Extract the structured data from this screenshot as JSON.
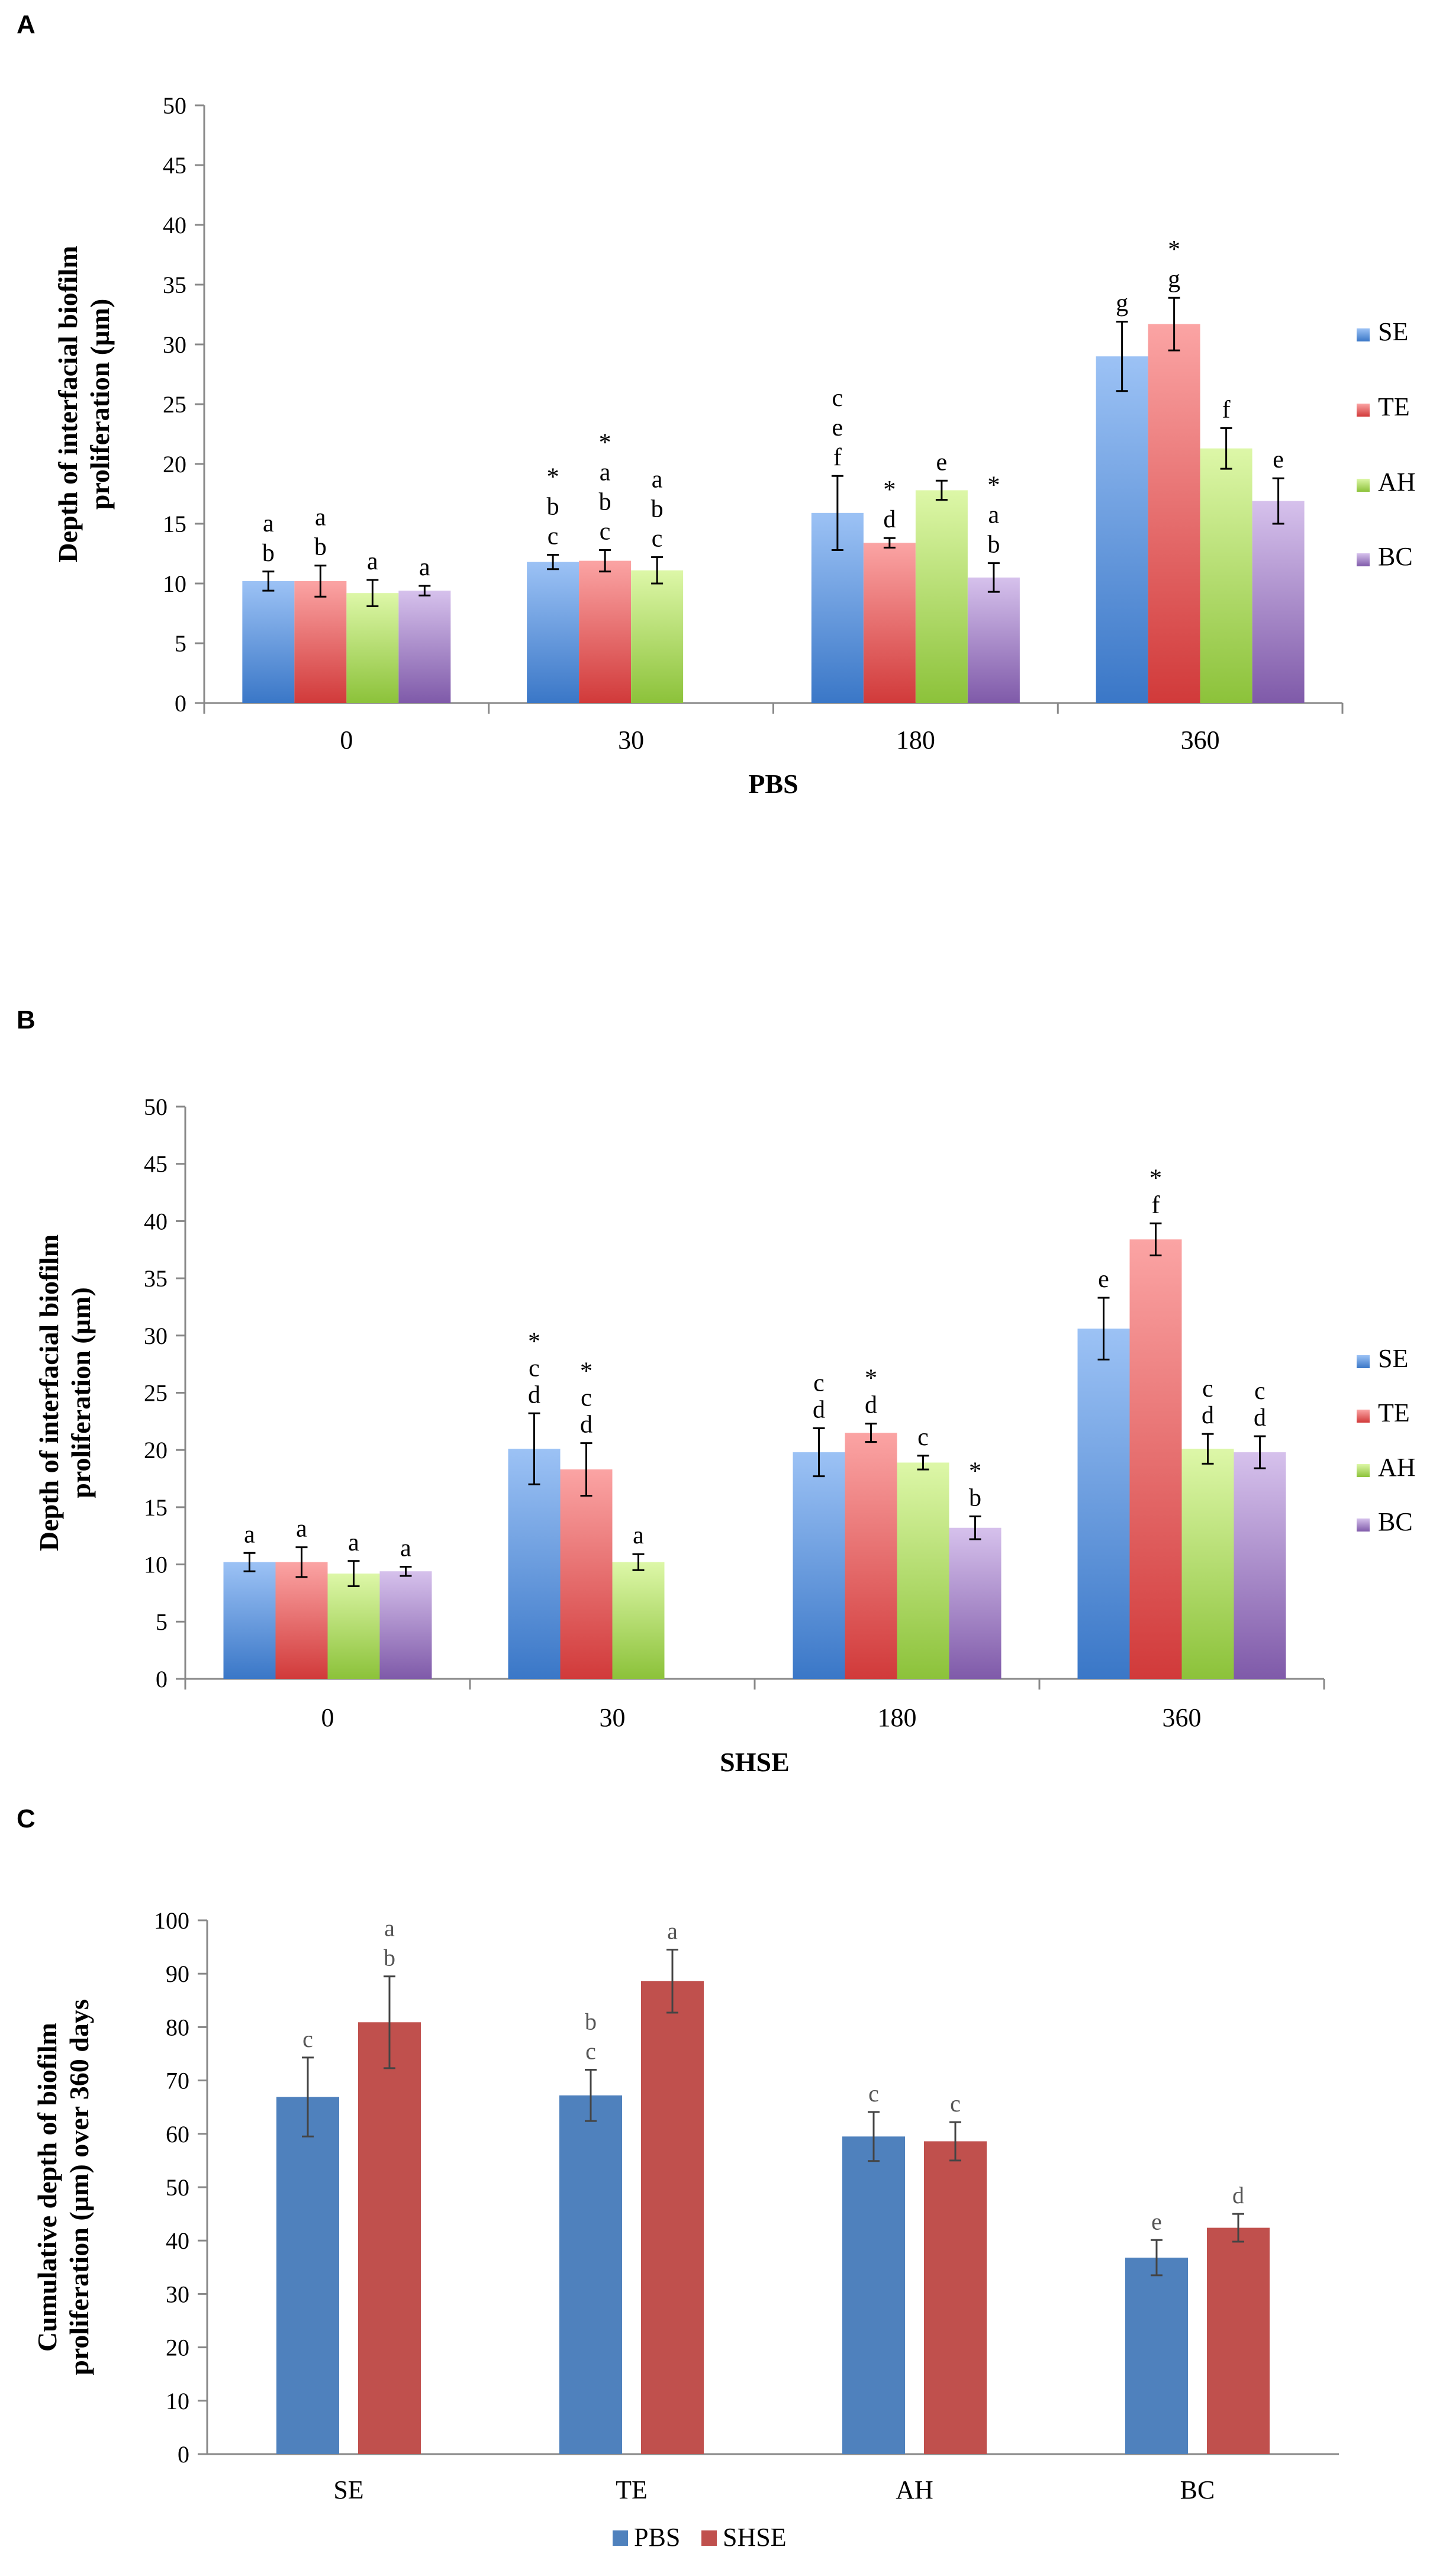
{
  "chart_data": [
    {
      "panel": "A",
      "type": "bar",
      "xlabel": "PBS",
      "ylabel": [
        "Depth of interfacial biofilm",
        "proliferation (µm)"
      ],
      "ylim": [
        0,
        50
      ],
      "yticks": [
        0,
        5,
        10,
        15,
        20,
        25,
        30,
        35,
        40,
        45,
        50
      ],
      "categories": [
        "0",
        "30",
        "180",
        "360"
      ],
      "series": [
        {
          "name": "SE",
          "values": [
            10.2,
            11.8,
            15.9,
            29.0
          ],
          "errors": [
            0.8,
            0.6,
            3.1,
            2.9
          ],
          "labels": [
            [
              "a",
              "b"
            ],
            [
              "*",
              "b",
              "c"
            ],
            [
              "c",
              "e",
              "f"
            ],
            [
              "g"
            ]
          ]
        },
        {
          "name": "TE",
          "values": [
            10.2,
            11.9,
            13.4,
            31.7
          ],
          "errors": [
            1.3,
            0.9,
            0.4,
            2.2
          ],
          "labels": [
            [
              "a",
              "b"
            ],
            [
              "*",
              "a",
              "b",
              "c"
            ],
            [
              "*",
              "d"
            ],
            [
              "*",
              "g"
            ]
          ]
        },
        {
          "name": "AH",
          "values": [
            9.2,
            11.1,
            17.8,
            21.3
          ],
          "errors": [
            1.1,
            1.1,
            0.8,
            1.7
          ],
          "labels": [
            [
              "a"
            ],
            [
              "a",
              "b",
              "c"
            ],
            [
              "e"
            ],
            [
              "f"
            ]
          ]
        },
        {
          "name": "BC",
          "values": [
            9.4,
            null,
            10.5,
            16.9
          ],
          "errors": [
            0.4,
            null,
            1.2,
            1.9
          ],
          "labels": [
            [
              "a"
            ],
            [],
            [
              "*",
              "a",
              "b"
            ],
            [
              "e"
            ]
          ]
        }
      ],
      "legend": [
        "SE",
        "TE",
        "AH",
        "BC"
      ]
    },
    {
      "panel": "B",
      "type": "bar",
      "xlabel": "SHSE",
      "ylabel": [
        "Depth of  interfacial biofilm",
        "proliferation (µm)"
      ],
      "ylim": [
        0,
        50
      ],
      "yticks": [
        0,
        5,
        10,
        15,
        20,
        25,
        30,
        35,
        40,
        45,
        50
      ],
      "categories": [
        "0",
        "30",
        "180",
        "360"
      ],
      "series": [
        {
          "name": "SE",
          "values": [
            10.2,
            20.1,
            19.8,
            30.6
          ],
          "errors": [
            0.8,
            3.1,
            2.1,
            2.7
          ],
          "labels": [
            [
              "a"
            ],
            [
              "*",
              "c",
              "d"
            ],
            [
              "c",
              "d"
            ],
            [
              "e"
            ]
          ]
        },
        {
          "name": "TE",
          "values": [
            10.2,
            18.3,
            21.5,
            38.4
          ],
          "errors": [
            1.3,
            2.3,
            0.8,
            1.4
          ],
          "labels": [
            [
              "a"
            ],
            [
              "*",
              "c",
              "d"
            ],
            [
              "*",
              "d"
            ],
            [
              "*",
              "f"
            ]
          ]
        },
        {
          "name": "AH",
          "values": [
            9.2,
            10.2,
            18.9,
            20.1
          ],
          "errors": [
            1.1,
            0.7,
            0.6,
            1.3
          ],
          "labels": [
            [
              "a"
            ],
            [
              "a"
            ],
            [
              "c"
            ],
            [
              "c",
              "d"
            ]
          ]
        },
        {
          "name": "BC",
          "values": [
            9.4,
            null,
            13.2,
            19.8
          ],
          "errors": [
            0.4,
            null,
            1.0,
            1.4
          ],
          "labels": [
            [
              "a"
            ],
            [],
            [
              "*",
              "b"
            ],
            [
              "c",
              "d"
            ]
          ]
        }
      ],
      "legend": [
        "SE",
        "TE",
        "AH",
        "BC"
      ]
    },
    {
      "panel": "C",
      "type": "bar",
      "xlabel": "",
      "ylabel": [
        "Cumulative depth of biofilm",
        "proliferation (µm) over 360 days"
      ],
      "ylim": [
        0,
        100
      ],
      "yticks": [
        0,
        10,
        20,
        30,
        40,
        50,
        60,
        70,
        80,
        90,
        100
      ],
      "categories": [
        "SE",
        "TE",
        "AH",
        "BC"
      ],
      "series": [
        {
          "name": "PBS",
          "values": [
            66.9,
            67.2,
            59.5,
            36.8
          ],
          "errors": [
            7.4,
            4.8,
            4.6,
            3.3
          ],
          "labels": [
            [
              "c"
            ],
            [
              "b",
              "c"
            ],
            [
              "c"
            ],
            [
              "e"
            ]
          ]
        },
        {
          "name": "SHSE",
          "values": [
            80.9,
            88.6,
            58.6,
            42.4
          ],
          "errors": [
            8.6,
            5.9,
            3.6,
            2.6
          ],
          "labels": [
            [
              "a",
              "b"
            ],
            [
              "a"
            ],
            [
              "c"
            ],
            [
              "d"
            ]
          ]
        }
      ],
      "legend": [
        "PBS",
        "SHSE"
      ]
    }
  ],
  "colors": {
    "SE": [
      "#9cc2f5",
      "#3a77c7"
    ],
    "TE": [
      "#fba4a4",
      "#d13a3a"
    ],
    "AH": [
      "#ddf7a8",
      "#8cc23a"
    ],
    "BC": [
      "#d6c1ec",
      "#7f5aa9"
    ],
    "PBS": "#4f81bd",
    "SHSE": "#c0504d",
    "axis": "#888888"
  }
}
